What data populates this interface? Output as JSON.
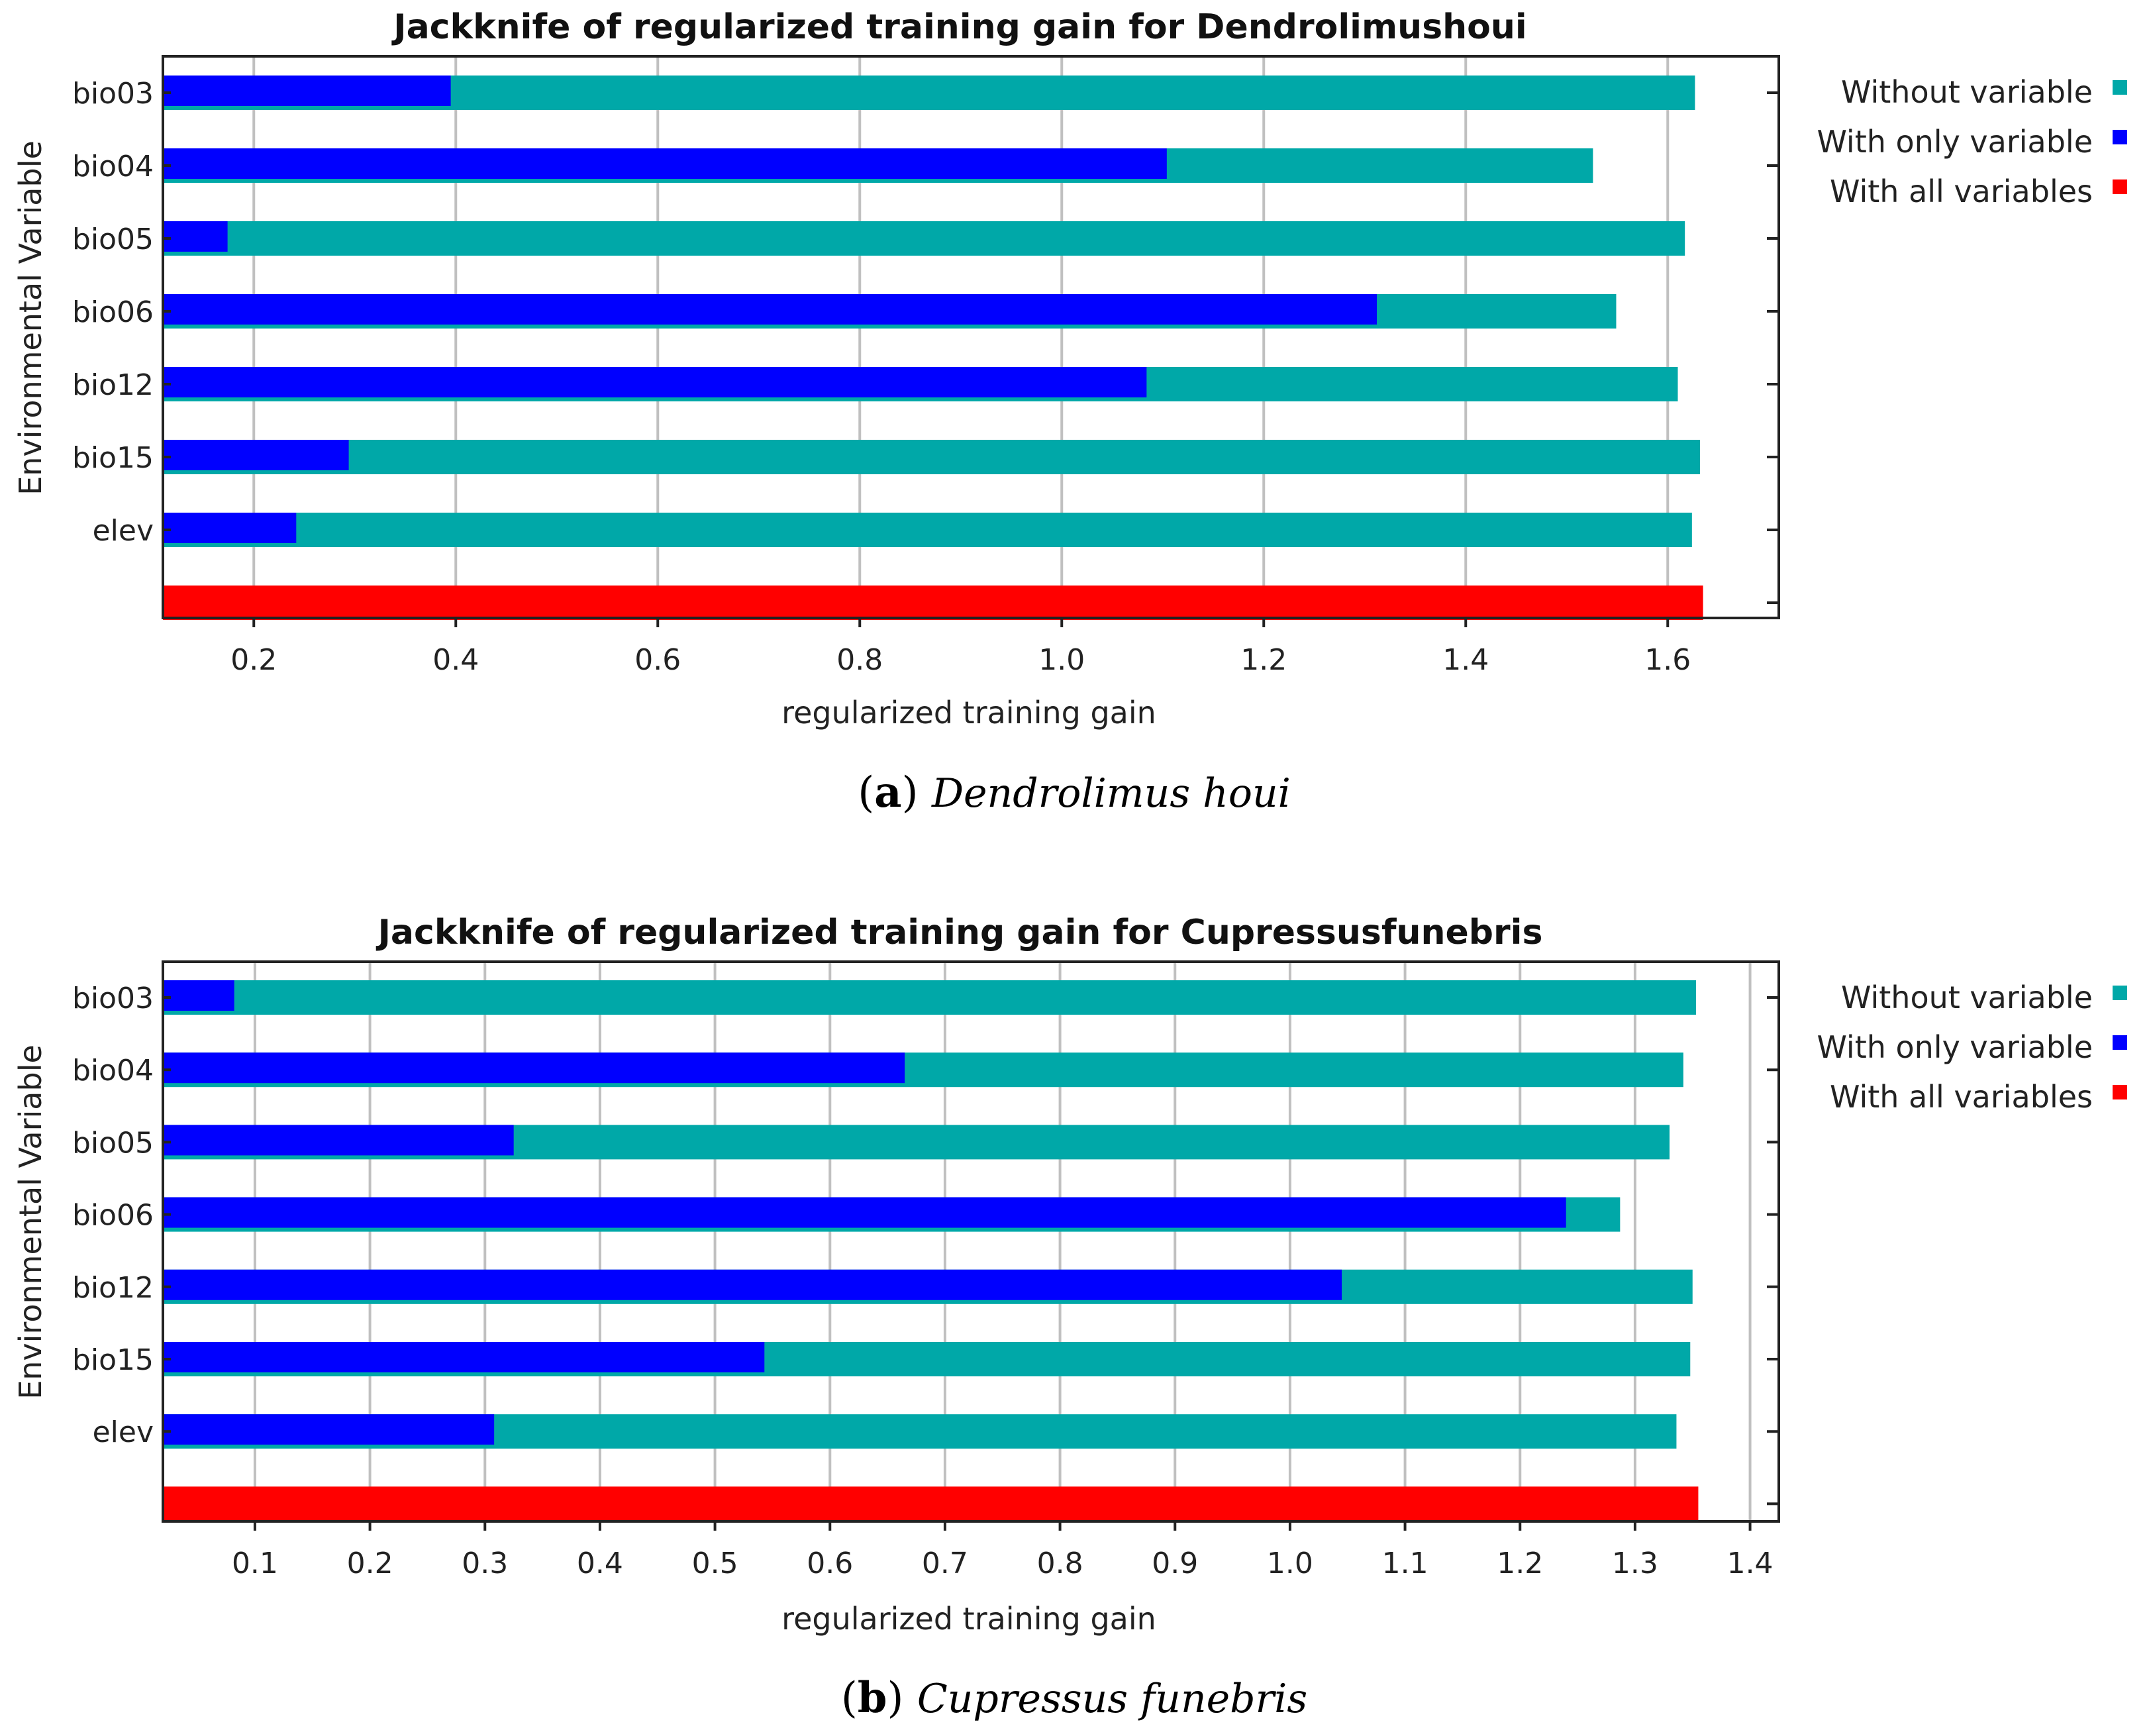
{
  "colors": {
    "without": "#00A8A8",
    "only": "#0000FF",
    "all": "#FF0000"
  },
  "chart_data": [
    {
      "type": "bar",
      "orientation": "horizontal",
      "title": "Jackknife of regularized training gain for Dendrolimushoui",
      "xlabel": "regularized training gain",
      "ylabel": "Environmental Variable",
      "caption_letter": "a",
      "caption_name": "Dendrolimus houi",
      "categories": [
        "bio03",
        "bio04",
        "bio05",
        "bio06",
        "bio12",
        "bio15",
        "elev"
      ],
      "series": [
        {
          "name": "Without variable",
          "values": [
            1.627,
            1.526,
            1.617,
            1.549,
            1.61,
            1.632,
            1.624
          ]
        },
        {
          "name": "With only variable",
          "values": [
            0.395,
            1.104,
            0.174,
            1.312,
            1.084,
            0.294,
            0.242
          ]
        }
      ],
      "all_variables": 1.635,
      "xlim": [
        0.11,
        1.71
      ],
      "xticks": [
        0.2,
        0.4,
        0.6,
        0.8,
        1.0,
        1.2,
        1.4,
        1.6
      ],
      "xtick_labels": [
        "0.2",
        "0.4",
        "0.6",
        "0.8",
        "1.0",
        "1.2",
        "1.4",
        "1.6"
      ],
      "legend": [
        "Without variable",
        "With only variable",
        "With all variables"
      ],
      "legend_position": "top-right outside",
      "grid": true
    },
    {
      "type": "bar",
      "orientation": "horizontal",
      "title": "Jackknife of regularized training gain for Cupressusfunebris",
      "xlabel": "regularized training gain",
      "ylabel": "Environmental Variable",
      "caption_letter": "b",
      "caption_name": "Cupressus funebris",
      "categories": [
        "bio03",
        "bio04",
        "bio05",
        "bio06",
        "bio12",
        "bio15",
        "elev"
      ],
      "series": [
        {
          "name": "Without variable",
          "values": [
            1.353,
            1.342,
            1.33,
            1.287,
            1.35,
            1.348,
            1.336
          ]
        },
        {
          "name": "With only variable",
          "values": [
            0.082,
            0.665,
            0.325,
            1.24,
            1.045,
            0.543,
            0.308
          ]
        }
      ],
      "all_variables": 1.355,
      "xlim": [
        0.02,
        1.425
      ],
      "xticks": [
        0.1,
        0.2,
        0.3,
        0.4,
        0.5,
        0.6,
        0.7,
        0.8,
        0.9,
        1.0,
        1.1,
        1.2,
        1.3,
        1.4
      ],
      "xtick_labels": [
        "0.1",
        "0.2",
        "0.3",
        "0.4",
        "0.5",
        "0.6",
        "0.7",
        "0.8",
        "0.9",
        "1.0",
        "1.1",
        "1.2",
        "1.3",
        "1.4"
      ],
      "legend": [
        "Without variable",
        "With only variable",
        "With all variables"
      ],
      "legend_position": "top-right outside",
      "grid": true
    }
  ]
}
